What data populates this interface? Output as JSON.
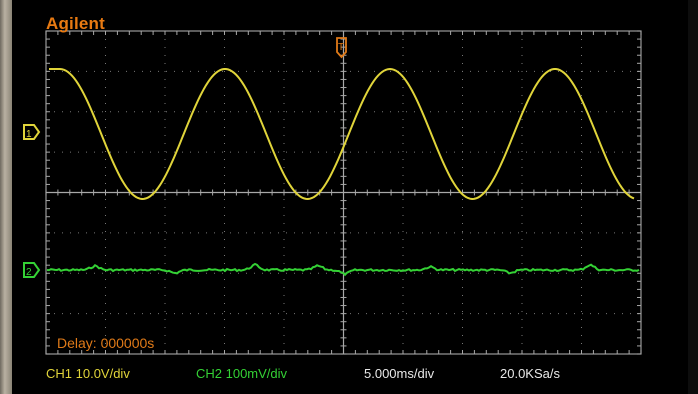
{
  "brand": "Agilent",
  "delay_label": "Delay: 000000s",
  "ch1_status": "CH1 10.0V/div",
  "ch2_status": "CH2 100mV/div",
  "timebase": "5.000ms/div",
  "sample_rate": "20.0KSa/s",
  "trigger_marker": "T",
  "colors": {
    "ch1": "#e0d43a",
    "ch2": "#34d135",
    "grid": "#8c8c8c",
    "annotation": "#e07a18"
  },
  "icons": [
    "ch1-marker-icon",
    "ch2-marker-icon",
    "trigger-marker-icon"
  ]
}
